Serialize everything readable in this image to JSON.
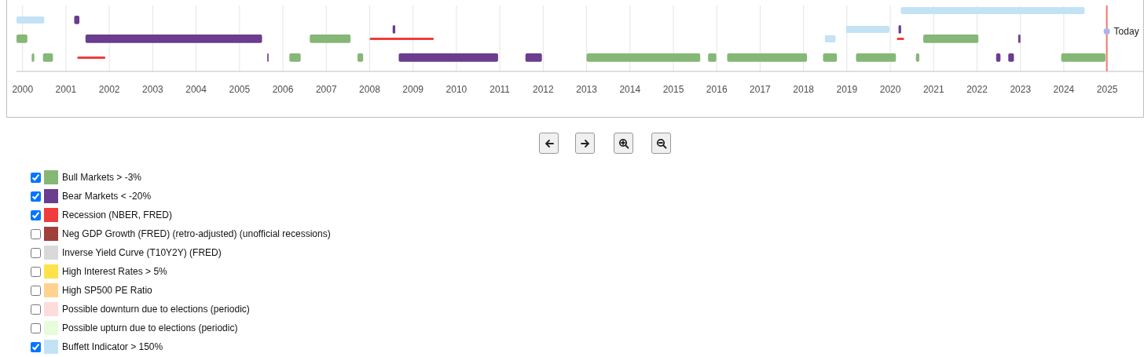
{
  "chart_data": {
    "type": "bar",
    "orientation": "horizontal",
    "categories": [
      null,
      null,
      null,
      null,
      null,
      null,
      null
    ],
    "xlim": [
      1999.86,
      2025.83
    ],
    "xticks": [
      2000,
      2001,
      2002,
      2003,
      2004,
      2005,
      2006,
      2007,
      2008,
      2009,
      2010,
      2011,
      2012,
      2013,
      2014,
      2015,
      2016,
      2017,
      2018,
      2019,
      2020,
      2021,
      2022,
      2023,
      2024,
      2025
    ],
    "grid": "x",
    "legend": "bottom",
    "ref_lines": [
      {
        "axis": "x",
        "value": 2024.99,
        "label": "Today",
        "color": "#f4786e"
      }
    ],
    "series": [
      {
        "name": "Bull Markets > -3%",
        "color": "#85b777",
        "values": [
          null,
          null,
          null,
          0.25,
          null,
          0.06,
          null
        ],
        "base": [
          null,
          null,
          null,
          1999.86,
          null,
          2000.21,
          null
        ]
      },
      {
        "color": "#85b777",
        "values": [
          null,
          null,
          null,
          0.94,
          null,
          0.23,
          null
        ],
        "base": [
          null,
          null,
          null,
          2006.62,
          null,
          2000.47,
          null
        ]
      },
      {
        "color": "#85b777",
        "values": [
          null,
          null,
          null,
          1.27,
          null,
          0.26,
          null
        ],
        "base": [
          null,
          null,
          null,
          2020.76,
          null,
          2006.15,
          null
        ]
      },
      {
        "color": "#85b777",
        "values": [
          null,
          null,
          null,
          null,
          null,
          0.13,
          null
        ],
        "base": [
          null,
          null,
          null,
          null,
          null,
          2007.72,
          null
        ]
      },
      {
        "color": "#85b777",
        "values": [
          null,
          null,
          null,
          null,
          null,
          2.62,
          null
        ],
        "base": [
          null,
          null,
          null,
          null,
          null,
          2013.0,
          null
        ]
      },
      {
        "color": "#85b777",
        "values": [
          null,
          null,
          null,
          null,
          null,
          0.19,
          null
        ],
        "base": [
          null,
          null,
          null,
          null,
          null,
          2015.8,
          null
        ]
      },
      {
        "color": "#85b777",
        "values": [
          null,
          null,
          null,
          null,
          null,
          1.84,
          null
        ],
        "base": [
          null,
          null,
          null,
          null,
          null,
          2016.24,
          null
        ]
      },
      {
        "color": "#85b777",
        "values": [
          null,
          null,
          null,
          null,
          null,
          0.32,
          null
        ],
        "base": [
          null,
          null,
          null,
          null,
          null,
          2018.45,
          null
        ]
      },
      {
        "color": "#85b777",
        "values": [
          null,
          null,
          null,
          null,
          null,
          0.92,
          null
        ],
        "base": [
          null,
          null,
          null,
          null,
          null,
          2019.21,
          null
        ]
      },
      {
        "color": "#85b777",
        "values": [
          null,
          null,
          null,
          null,
          null,
          0.08,
          null
        ],
        "base": [
          null,
          null,
          null,
          null,
          null,
          2020.59,
          null
        ]
      },
      {
        "color": "#85b777",
        "values": [
          null,
          null,
          null,
          null,
          null,
          1.02,
          null
        ],
        "base": [
          null,
          null,
          null,
          null,
          null,
          2023.94,
          null
        ]
      },
      {
        "name": "Bear Markets < -20%",
        "color": "#6b3d8e",
        "values": [
          null,
          0.12,
          0.06,
          4.07,
          null,
          0.03,
          null
        ],
        "base": [
          null,
          2001.19,
          2008.53,
          2001.45,
          null,
          2005.64,
          null
        ]
      },
      {
        "color": "#6b3d8e",
        "values": [
          null,
          null,
          0.06,
          0.05,
          null,
          2.29,
          null
        ],
        "base": [
          null,
          null,
          2020.19,
          2022.95,
          null,
          2008.67,
          null
        ]
      },
      {
        "color": "#6b3d8e",
        "values": [
          null,
          null,
          null,
          null,
          null,
          0.38,
          null
        ],
        "base": [
          null,
          null,
          null,
          null,
          null,
          2011.59,
          null
        ]
      },
      {
        "color": "#6b3d8e",
        "values": [
          null,
          null,
          null,
          null,
          null,
          0.1,
          null
        ],
        "base": [
          null,
          null,
          null,
          null,
          null,
          2022.44,
          null
        ]
      },
      {
        "color": "#6b3d8e",
        "values": [
          null,
          null,
          null,
          null,
          null,
          0.13,
          null
        ],
        "base": [
          null,
          null,
          null,
          null,
          null,
          2022.72,
          null
        ]
      },
      {
        "name": "Recession (NBER, FRED)",
        "color": "#f03c3c",
        "values": [
          null,
          null,
          null,
          1.48,
          null,
          0.65,
          null
        ],
        "base": [
          null,
          null,
          null,
          2008.0,
          null,
          2001.26,
          null
        ]
      },
      {
        "color": "#f03c3c",
        "values": [
          null,
          null,
          null,
          0.17,
          null,
          null,
          null
        ],
        "base": [
          null,
          null,
          null,
          2020.15,
          null,
          null,
          null
        ]
      },
      {
        "name": "Neg GDP Growth (FRED) (retro-adjusted) (unofficial recessions)",
        "color": "#a0403d",
        "values": [
          null,
          null,
          null,
          null,
          null,
          null,
          null
        ]
      },
      {
        "name": "Inverse Yield Curve (T10Y2Y) (FRED)",
        "color": "#d9d9d9",
        "values": [
          null,
          null,
          null,
          null,
          null,
          null,
          null
        ]
      },
      {
        "name": "High Interest Rates > 5%",
        "color": "#ffe24a",
        "values": [
          null,
          null,
          null,
          null,
          null,
          null,
          null
        ]
      },
      {
        "name": "High SP500 PE Ratio",
        "color": "#ffd38f",
        "values": [
          null,
          null,
          null,
          null,
          null,
          null,
          null
        ]
      },
      {
        "name": "Possible downturn due to elections (periodic)",
        "color": "#ffdcdc",
        "values": [
          null,
          null,
          null,
          null,
          null,
          null,
          null
        ]
      },
      {
        "name": "Possible upturn due to elections (periodic)",
        "color": "#e8fcdc",
        "values": [
          null,
          null,
          null,
          null,
          null,
          null,
          null
        ]
      },
      {
        "name": "Buffett Indicator > 150%",
        "color": "#c3e3f5",
        "values": [
          4.24,
          0.64,
          1.0,
          0.25,
          null,
          null,
          null
        ],
        "base": [
          2020.24,
          1999.86,
          2018.98,
          2018.49,
          null,
          null,
          null
        ]
      }
    ]
  }
}
